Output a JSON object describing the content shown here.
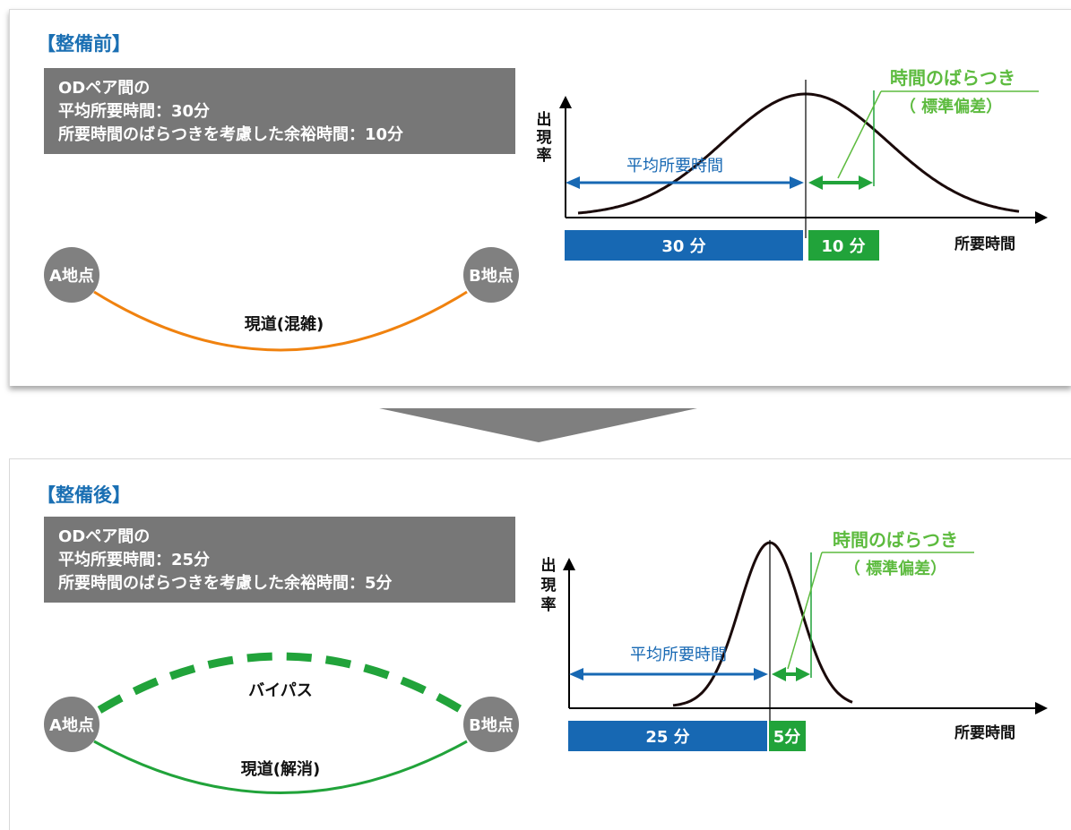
{
  "before": {
    "section_title": "【整備前】",
    "info_lines": [
      "ODペア間の",
      "平均所要時間：30分",
      "所要時間のばらつきを考慮した余裕時間：10分"
    ],
    "point_a": "A地点",
    "point_b": "B地点",
    "road_label": "現道(混雑)",
    "road_color": "#f0820f",
    "chart": {
      "y_axis_label": [
        "出",
        "現",
        "率"
      ],
      "x_axis_label": "所要時間",
      "mean_label": "平均所要時間",
      "variability_label_line1": "時間のばらつき",
      "variability_label_line2": "（ 標準偏差）",
      "bar_mean_label": "30 分",
      "bar_margin_label": "10 分"
    }
  },
  "after": {
    "section_title": "【整備後】",
    "info_lines": [
      "ODペア間の",
      "平均所要時間：25分",
      "所要時間のばらつきを考慮した余裕時間：5分"
    ],
    "point_a": "A地点",
    "point_b": "B地点",
    "bypass_label": "バイパス",
    "road_label": "現道(解消)",
    "road_color": "#21a33a",
    "chart": {
      "y_axis_label": [
        "出",
        "現",
        "率"
      ],
      "x_axis_label": "所要時間",
      "mean_label": "平均所要時間",
      "variability_label_line1": "時間のばらつき",
      "variability_label_line2": "（ 標準偏差）",
      "bar_mean_label": "25 分",
      "bar_margin_label": "5分"
    }
  },
  "colors": {
    "title_blue": "#1a6fb3",
    "mean_blue": "#1768b3",
    "variability_green": "#21a33a",
    "label_green": "#5dbb3f",
    "info_box_gray": "#777777",
    "point_gray": "#808080"
  }
}
